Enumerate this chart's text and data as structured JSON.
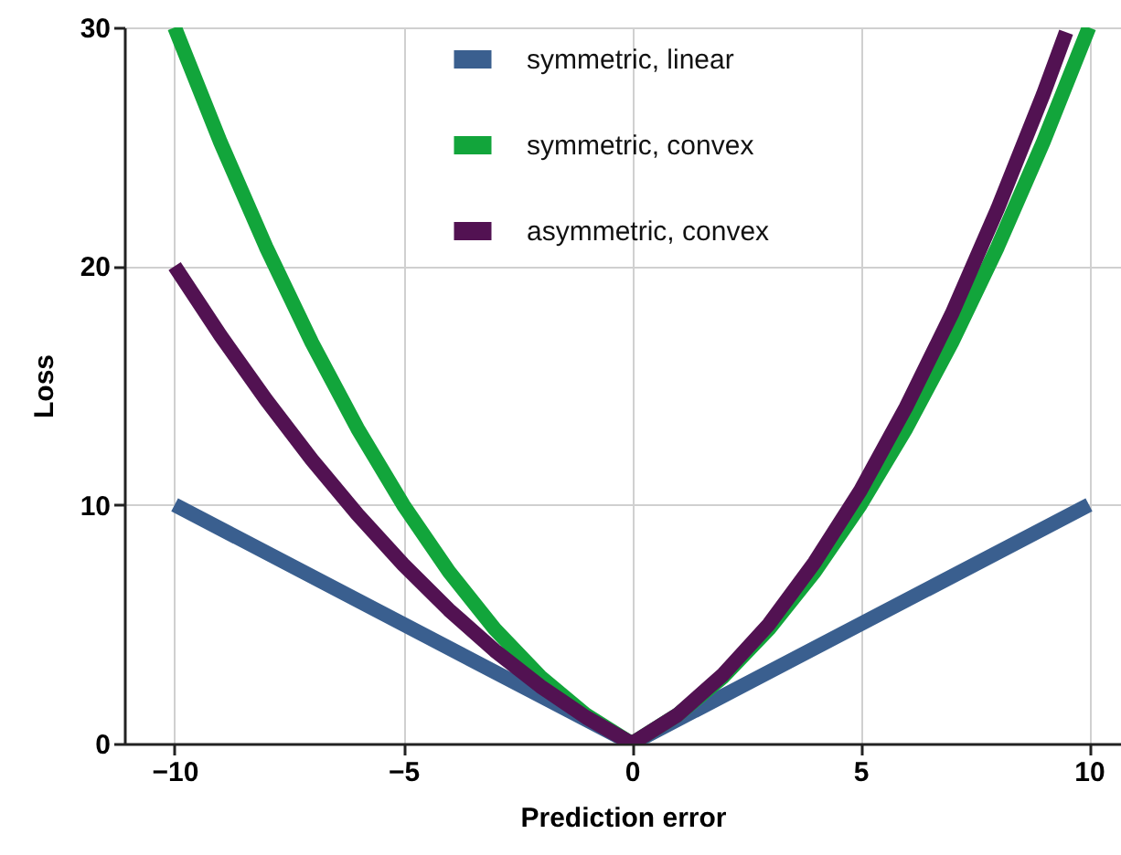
{
  "chart_data": {
    "type": "line",
    "xlabel": "Prediction error",
    "ylabel": "Loss",
    "xlim": [
      -11.1,
      10.7
    ],
    "ylim": [
      0,
      30
    ],
    "xticks": [
      -10,
      -5,
      0,
      5,
      10
    ],
    "yticks": [
      0,
      10,
      20,
      30
    ],
    "grid": true,
    "legend": "top",
    "line_style": "solid",
    "marker": "none",
    "series": [
      {
        "name": "symmetric, linear",
        "color": "#3a5f8f",
        "x": [
          -10,
          0,
          10
        ],
        "values": [
          10,
          0,
          10
        ]
      },
      {
        "name": "symmetric, convex",
        "color": "#12a53b",
        "x": [
          -10,
          -9,
          -8,
          -7,
          -6,
          -5,
          -4,
          -3,
          -2,
          -1,
          0,
          1,
          2,
          3,
          4,
          5,
          6,
          7,
          8,
          9,
          10
        ],
        "values": [
          30,
          25.2,
          20.8,
          16.8,
          13.2,
          10,
          7.2,
          4.8,
          2.8,
          1.2,
          0,
          1.2,
          2.8,
          4.8,
          7.2,
          10,
          13.2,
          16.8,
          20.8,
          25.2,
          30
        ]
      },
      {
        "name": "asymmetric, convex",
        "color": "#521252",
        "x": [
          -10,
          -9,
          -8,
          -7,
          -6,
          -5,
          -4,
          -3,
          -2,
          -1,
          0,
          1,
          2,
          3,
          4,
          5,
          6,
          7,
          8,
          9,
          9.5
        ],
        "values": [
          20,
          17.1,
          14.4,
          11.9,
          9.6,
          7.5,
          5.6,
          3.9,
          2.4,
          1.1,
          0,
          1.2,
          2.9,
          5,
          7.6,
          10.6,
          14.1,
          18,
          22.4,
          27.2,
          29.8
        ]
      }
    ]
  }
}
